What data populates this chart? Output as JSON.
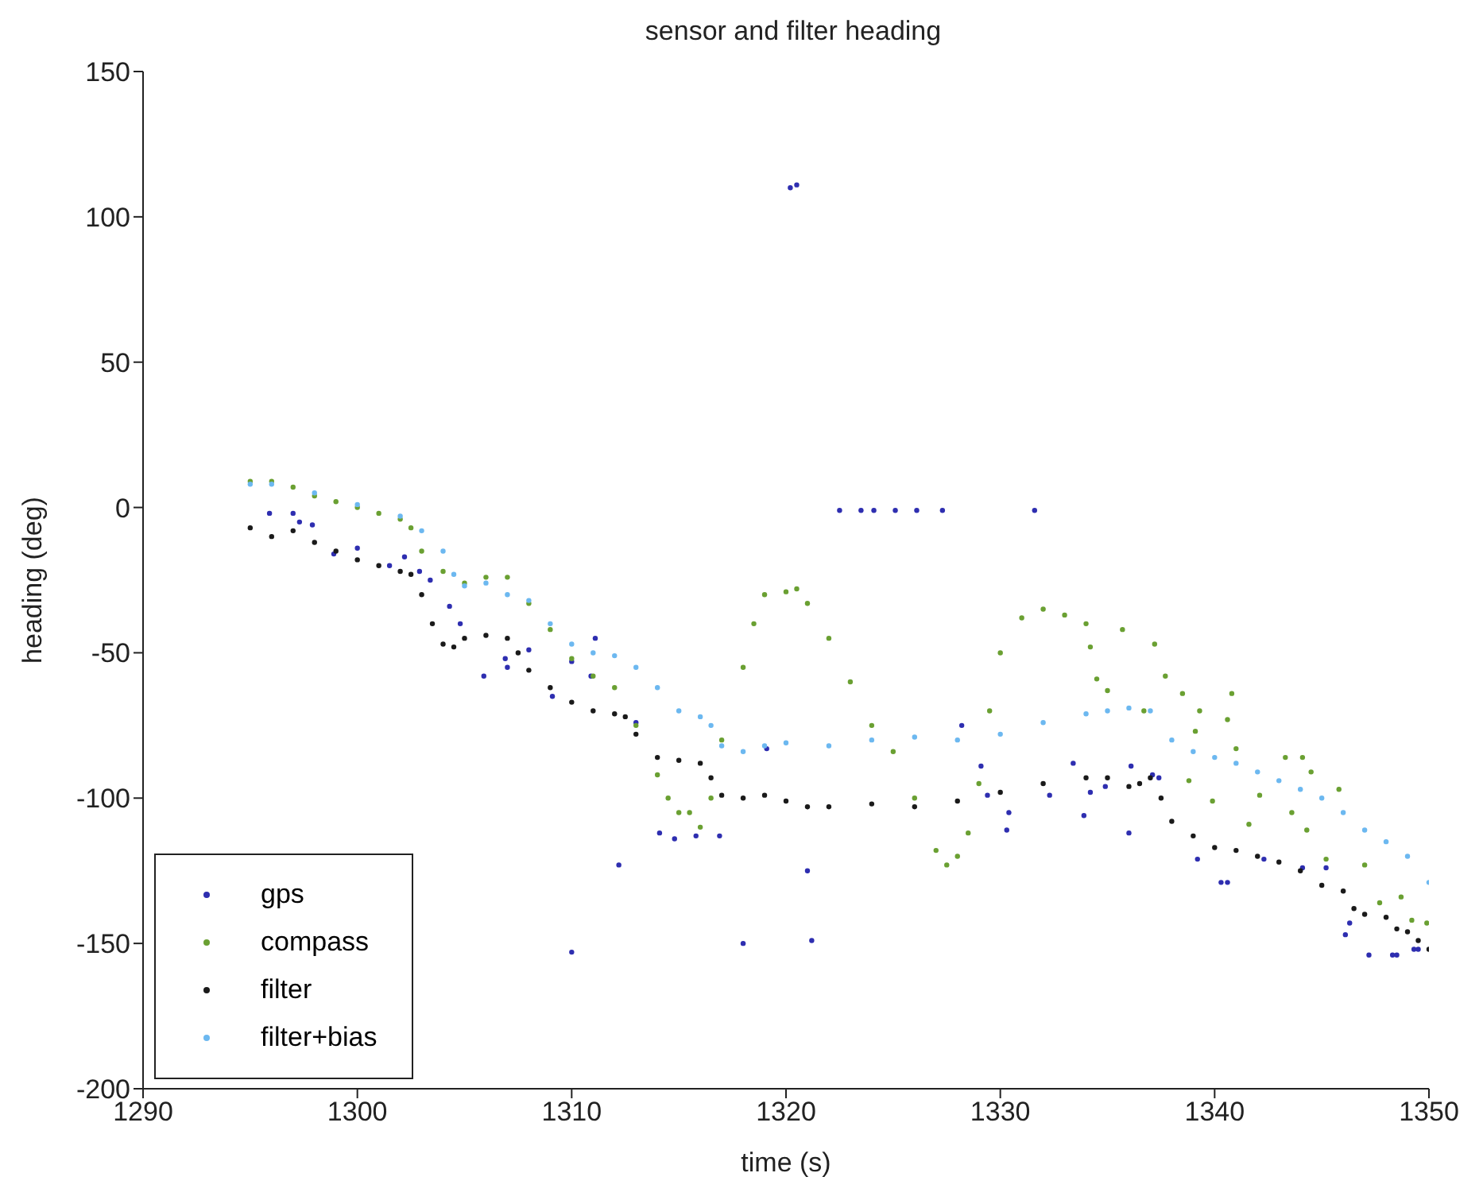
{
  "chart_data": {
    "type": "scatter",
    "title": "sensor and filter heading",
    "xlabel": "time (s)",
    "ylabel": "heading (deg)",
    "xlim": [
      1290,
      1350
    ],
    "xticks": [
      1290,
      1300,
      1310,
      1320,
      1330,
      1340,
      1350
    ],
    "ylim": [
      -200,
      150
    ],
    "yticks": [
      -200,
      -150,
      -100,
      -50,
      0,
      50,
      100,
      150
    ],
    "grid": false,
    "legend": "bottom left",
    "marker": "circle",
    "series": [
      {
        "name": "gps",
        "color": "#2e2eb0",
        "x": [
          1295.9,
          1297,
          1297.3,
          1297.9,
          1298.9,
          1300,
          1301.5,
          1302.2,
          1302.9,
          1303.4,
          1304.3,
          1304.8,
          1305.9,
          1306.9,
          1307,
          1308,
          1309.1,
          1310,
          1310,
          1310.9,
          1311.1,
          1312.2,
          1313,
          1314.1,
          1314.8,
          1315.8,
          1316.9,
          1318,
          1319.1,
          1320.2,
          1320.5,
          1321,
          1321.2,
          1322.5,
          1323.5,
          1324.1,
          1325.1,
          1326.1,
          1327.3,
          1328.2,
          1329.1,
          1329.4,
          1330.3,
          1330.4,
          1331.6,
          1332.3,
          1333.4,
          1333.9,
          1334.2,
          1334.9,
          1336,
          1336.1,
          1337.1,
          1337.4,
          1339.2,
          1340.3,
          1340.6,
          1342.3,
          1344.1,
          1345.2,
          1346.1,
          1346.3,
          1347.2,
          1348.3,
          1348.5,
          1349.3,
          1349.5
        ],
        "values": [
          -2,
          -2,
          -5,
          -6,
          -16,
          -14,
          -20,
          -17,
          -22,
          -25,
          -34,
          -40,
          -58,
          -52,
          -55,
          -49,
          -65,
          -53,
          -153,
          -58,
          -45,
          -123,
          -74,
          -112,
          -114,
          -113,
          -113,
          -150,
          -83,
          110,
          111,
          -125,
          -149,
          -1,
          -1,
          -1,
          -1,
          -1,
          -1,
          -75,
          -89,
          -99,
          -111,
          -105,
          -1,
          -99,
          -88,
          -106,
          -98,
          -96,
          -112,
          -89,
          -92,
          -93,
          -121,
          -129,
          -129,
          -121,
          -124,
          -124,
          -147,
          -143,
          -154,
          -154,
          -154,
          -152,
          -152
        ]
      },
      {
        "name": "compass",
        "color": "#6aa032",
        "x": [
          1295,
          1296,
          1297,
          1298,
          1299,
          1300,
          1301,
          1302,
          1302.5,
          1303,
          1304,
          1305,
          1306,
          1307,
          1308,
          1309,
          1310,
          1311,
          1312,
          1313,
          1314,
          1314.5,
          1315,
          1315.5,
          1316,
          1316.5,
          1317,
          1318,
          1318.5,
          1319,
          1320,
          1320.5,
          1321,
          1322,
          1323,
          1324,
          1325,
          1326,
          1327,
          1327.5,
          1328,
          1328.5,
          1329,
          1329.5,
          1330,
          1331,
          1332,
          1333,
          1334,
          1334.2,
          1334.5,
          1335,
          1335.7,
          1336.7,
          1337.2,
          1337.7,
          1338.5,
          1338.8,
          1339.1,
          1339.3,
          1339.9,
          1340.6,
          1340.8,
          1341,
          1341.6,
          1342.1,
          1343.3,
          1343.6,
          1344.1,
          1344.3,
          1344.5,
          1345.2,
          1345.8,
          1347,
          1347.7,
          1348.7,
          1349.2,
          1349.9
        ],
        "values": [
          9,
          9,
          7,
          4,
          2,
          0,
          -2,
          -4,
          -7,
          -15,
          -22,
          -26,
          -24,
          -24,
          -33,
          -42,
          -52,
          -58,
          -62,
          -75,
          -92,
          -100,
          -105,
          -105,
          -110,
          -100,
          -80,
          -55,
          -40,
          -30,
          -29,
          -28,
          -33,
          -45,
          -60,
          -75,
          -84,
          -100,
          -118,
          -123,
          -120,
          -112,
          -95,
          -70,
          -50,
          -38,
          -35,
          -37,
          -40,
          -48,
          -59,
          -63,
          -42,
          -70,
          -47,
          -58,
          -64,
          -94,
          -77,
          -70,
          -101,
          -73,
          -64,
          -83,
          -109,
          -99,
          -86,
          -105,
          -86,
          -111,
          -91,
          -121,
          -97,
          -123,
          -136,
          -134,
          -142,
          -143
        ]
      },
      {
        "name": "filter",
        "color": "#1a1a1a",
        "x": [
          1295,
          1296,
          1297,
          1298,
          1299,
          1300,
          1301,
          1302,
          1302.5,
          1303,
          1303.5,
          1304,
          1304.5,
          1305,
          1306,
          1307,
          1307.5,
          1308,
          1309,
          1310,
          1311,
          1312,
          1312.5,
          1313,
          1314,
          1315,
          1316,
          1316.5,
          1317,
          1318,
          1319,
          1320,
          1321,
          1322,
          1324,
          1326,
          1328,
          1330,
          1332,
          1334,
          1335,
          1336,
          1336.5,
          1337,
          1337.5,
          1338,
          1339,
          1340,
          1341,
          1342,
          1343,
          1344,
          1345,
          1346,
          1346.5,
          1347,
          1348,
          1348.5,
          1349,
          1349.5,
          1350
        ],
        "values": [
          -7,
          -10,
          -8,
          -12,
          -15,
          -18,
          -20,
          -22,
          -23,
          -30,
          -40,
          -47,
          -48,
          -45,
          -44,
          -45,
          -50,
          -56,
          -62,
          -67,
          -70,
          -71,
          -72,
          -78,
          -86,
          -87,
          -88,
          -93,
          -99,
          -100,
          -99,
          -101,
          -103,
          -103,
          -102,
          -103,
          -101,
          -98,
          -95,
          -93,
          -93,
          -96,
          -95,
          -93,
          -100,
          -108,
          -113,
          -117,
          -118,
          -120,
          -122,
          -125,
          -130,
          -132,
          -138,
          -140,
          -141,
          -145,
          -146,
          -149,
          -152
        ]
      },
      {
        "name": "filter+bias",
        "color": "#6cb8f0",
        "x": [
          1295,
          1296,
          1298,
          1300,
          1302,
          1303,
          1304,
          1304.5,
          1305,
          1306,
          1307,
          1308,
          1309,
          1310,
          1311,
          1312,
          1313,
          1314,
          1315,
          1316,
          1316.5,
          1317,
          1318,
          1319,
          1320,
          1322,
          1324,
          1326,
          1328,
          1330,
          1332,
          1334,
          1335,
          1336,
          1337,
          1338,
          1339,
          1340,
          1341,
          1342,
          1343,
          1344,
          1345,
          1346,
          1347,
          1348,
          1349,
          1350
        ],
        "values": [
          8,
          8,
          5,
          1,
          -3,
          -8,
          -15,
          -23,
          -27,
          -26,
          -30,
          -32,
          -40,
          -47,
          -50,
          -51,
          -55,
          -62,
          -70,
          -72,
          -75,
          -82,
          -84,
          -82,
          -81,
          -82,
          -80,
          -79,
          -80,
          -78,
          -74,
          -71,
          -70,
          -69,
          -70,
          -80,
          -84,
          -86,
          -88,
          -91,
          -94,
          -97,
          -100,
          -105,
          -111,
          -115,
          -120,
          -129
        ]
      }
    ]
  }
}
